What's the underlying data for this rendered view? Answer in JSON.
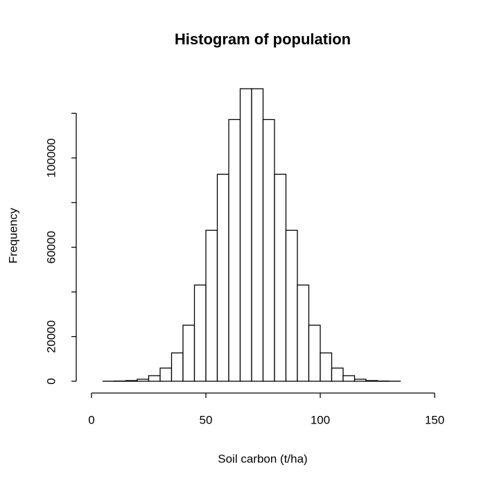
{
  "chart_data": {
    "type": "histogram",
    "title": "Histogram of population",
    "x_label": "Soil carbon (t/ha)",
    "y_label": "Frequency",
    "bins": [
      -5,
      0,
      5,
      10,
      15,
      20,
      25,
      30,
      35,
      40,
      45,
      50,
      55,
      60,
      65,
      70,
      75,
      80,
      85,
      90,
      95,
      100,
      105,
      110,
      115,
      120,
      125,
      130,
      135,
      140,
      145,
      150
    ],
    "values": [
      0,
      0,
      20,
      100,
      300,
      900,
      2500,
      5900,
      12700,
      25100,
      43100,
      67600,
      92700,
      117200,
      131000,
      131000,
      117200,
      92700,
      67600,
      43100,
      25100,
      12700,
      5900,
      2500,
      900,
      300,
      100,
      20,
      0,
      0,
      0
    ],
    "color": "#ffffff",
    "xlim": [
      -5,
      150
    ],
    "xticks": [
      0,
      50,
      100,
      150
    ],
    "ylim": [
      0,
      131000
    ],
    "yticks": [
      0,
      20000,
      {
        "value": 40000,
        "label": null
      },
      60000,
      {
        "value": 80000,
        "label": null
      },
      100000,
      {
        "value": 120000,
        "label": null
      }
    ],
    "grid": false
  }
}
